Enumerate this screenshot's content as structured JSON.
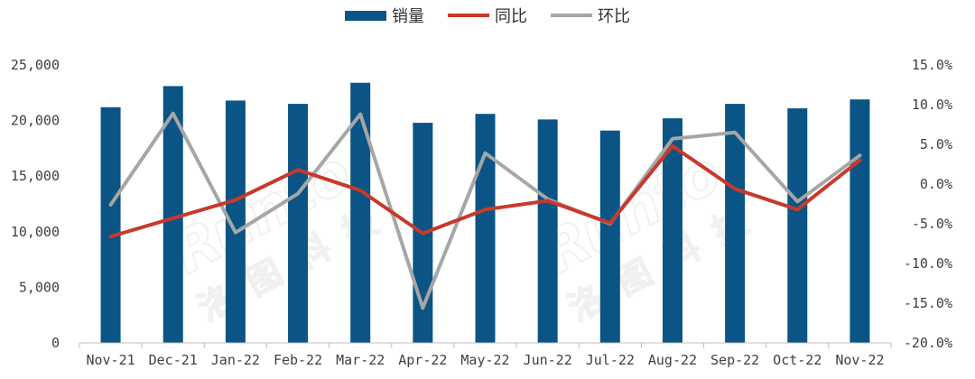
{
  "chart_data": {
    "type": "bar",
    "categories": [
      "Nov-21",
      "Dec-21",
      "Jan-22",
      "Feb-22",
      "Mar-22",
      "Apr-22",
      "May-22",
      "Jun-22",
      "Jul-22",
      "Aug-22",
      "Sep-22",
      "Oct-22",
      "Nov-22"
    ],
    "series": [
      {
        "name": "销量",
        "type": "bar",
        "axis": "left",
        "color": "#0a5585",
        "values": [
          21200,
          23100,
          21800,
          21500,
          23400,
          19800,
          20600,
          20100,
          19100,
          20200,
          21500,
          21100,
          21900
        ]
      },
      {
        "name": "同比",
        "type": "line",
        "axis": "right",
        "color": "#c8392b",
        "values": [
          -6.6,
          -4.3,
          -2.0,
          1.8,
          -0.8,
          -6.2,
          -3.2,
          -2.1,
          -4.9,
          4.8,
          -0.6,
          -3.2,
          3.0
        ]
      },
      {
        "name": "环比",
        "type": "line",
        "axis": "right",
        "color": "#a6a6a6",
        "values": [
          -2.6,
          8.9,
          -6.1,
          -1.2,
          8.8,
          -15.6,
          3.9,
          -1.9,
          -5.0,
          5.7,
          6.5,
          -2.2,
          3.6
        ]
      }
    ],
    "y_left": {
      "ylim": [
        0,
        25000
      ],
      "ticks": [
        "0",
        "5,000",
        "10,000",
        "15,000",
        "20,000",
        "25,000"
      ]
    },
    "y_right": {
      "ylim": [
        -20,
        15
      ],
      "ticks": [
        "-20.0%",
        "-15.0%",
        "-10.0%",
        "-5.0%",
        "0.0%",
        "5.0%",
        "10.0%",
        "15.0%"
      ]
    },
    "legend_position": "top-center",
    "grid": false
  },
  "watermark": {
    "text": "Runto",
    "cn": "洛图科技"
  }
}
